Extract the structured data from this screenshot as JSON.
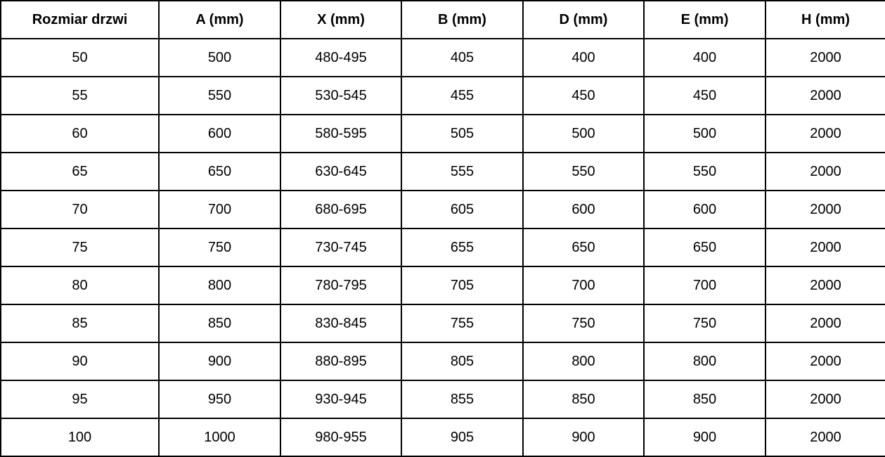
{
  "table": {
    "headers": [
      {
        "label": "Rozmiar drzwi"
      },
      {
        "label": "A (mm)"
      },
      {
        "label": "X (mm)"
      },
      {
        "label": "B (mm)"
      },
      {
        "label": "D (mm)"
      },
      {
        "label": "E (mm)"
      },
      {
        "label": "H (mm)"
      }
    ],
    "rows": [
      [
        "50",
        "500",
        "480-495",
        "405",
        "400",
        "400",
        "2000"
      ],
      [
        "55",
        "550",
        "530-545",
        "455",
        "450",
        "450",
        "2000"
      ],
      [
        "60",
        "600",
        "580-595",
        "505",
        "500",
        "500",
        "2000"
      ],
      [
        "65",
        "650",
        "630-645",
        "555",
        "550",
        "550",
        "2000"
      ],
      [
        "70",
        "700",
        "680-695",
        "605",
        "600",
        "600",
        "2000"
      ],
      [
        "75",
        "750",
        "730-745",
        "655",
        "650",
        "650",
        "2000"
      ],
      [
        "80",
        "800",
        "780-795",
        "705",
        "700",
        "700",
        "2000"
      ],
      [
        "85",
        "850",
        "830-845",
        "755",
        "750",
        "750",
        "2000"
      ],
      [
        "90",
        "900",
        "880-895",
        "805",
        "800",
        "800",
        "2000"
      ],
      [
        "95",
        "950",
        "930-945",
        "855",
        "850",
        "850",
        "2000"
      ],
      [
        "100",
        "1000",
        "980-955",
        "905",
        "900",
        "900",
        "2000"
      ]
    ],
    "colors": {
      "border": "#000000",
      "text": "#000000",
      "background": "#ffffff"
    }
  }
}
